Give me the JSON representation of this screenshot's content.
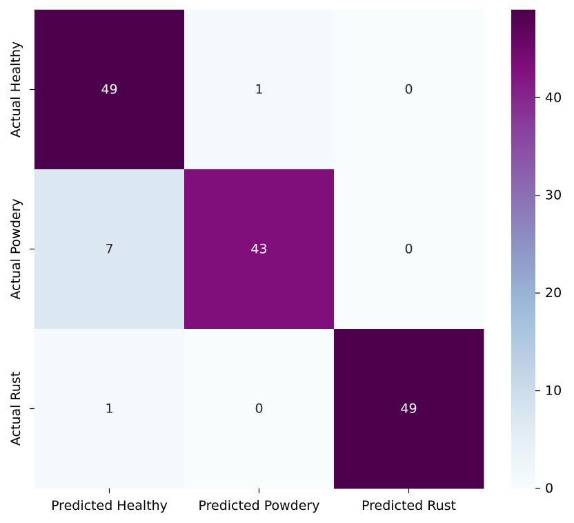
{
  "chart_data": {
    "type": "heatmap",
    "title": "",
    "xlabel": "",
    "ylabel": "",
    "x_categories": [
      "Predicted Healthy",
      "Predicted Powdery",
      "Predicted Rust"
    ],
    "y_categories": [
      "Actual Healthy",
      "Actual Powdery",
      "Actual Rust"
    ],
    "values": [
      [
        49,
        1,
        0
      ],
      [
        7,
        43,
        0
      ],
      [
        1,
        0,
        49
      ]
    ],
    "colormap": "BuPu",
    "colorbar": {
      "min": 0,
      "max": 49,
      "ticks": [
        0,
        10,
        20,
        30,
        40
      ]
    },
    "colors": {
      "low": "#f7fcfd",
      "high": "#4d004b",
      "annotation_light": "#ffffff",
      "annotation_dark": "#262626"
    }
  }
}
